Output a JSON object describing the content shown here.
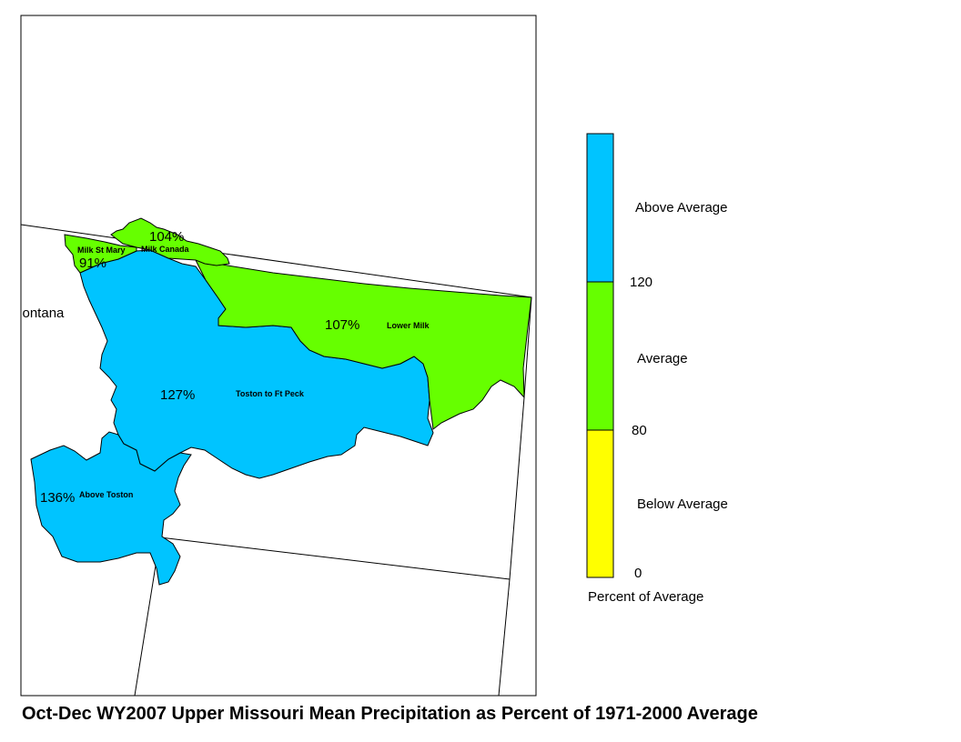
{
  "title": "Oct-Dec WY2007 Upper Missouri Mean Precipitation as Percent of 1971-2000 Average",
  "state_label": "Montana",
  "basins": [
    {
      "name": "Milk St Mary",
      "percent": "91%",
      "category": "Average",
      "color": "#66ff00"
    },
    {
      "name": "Milk Canada",
      "percent": "104%",
      "category": "Average",
      "color": "#66ff00"
    },
    {
      "name": "Lower Milk",
      "percent": "107%",
      "category": "Average",
      "color": "#66ff00"
    },
    {
      "name": "Toston to Ft Peck",
      "percent": "127%",
      "category": "Above Average",
      "color": "#00c4ff"
    },
    {
      "name": "Above Toston",
      "percent": "136%",
      "category": "Above Average",
      "color": "#00c4ff"
    }
  ],
  "legend": {
    "title": "Percent of Average",
    "classes": [
      {
        "label": "Above Average",
        "color": "#00c4ff"
      },
      {
        "label": "Average",
        "color": "#66ff00"
      },
      {
        "label": "Below Average",
        "color": "#ffff00"
      }
    ],
    "breaks": [
      "120",
      "80",
      "0"
    ]
  }
}
